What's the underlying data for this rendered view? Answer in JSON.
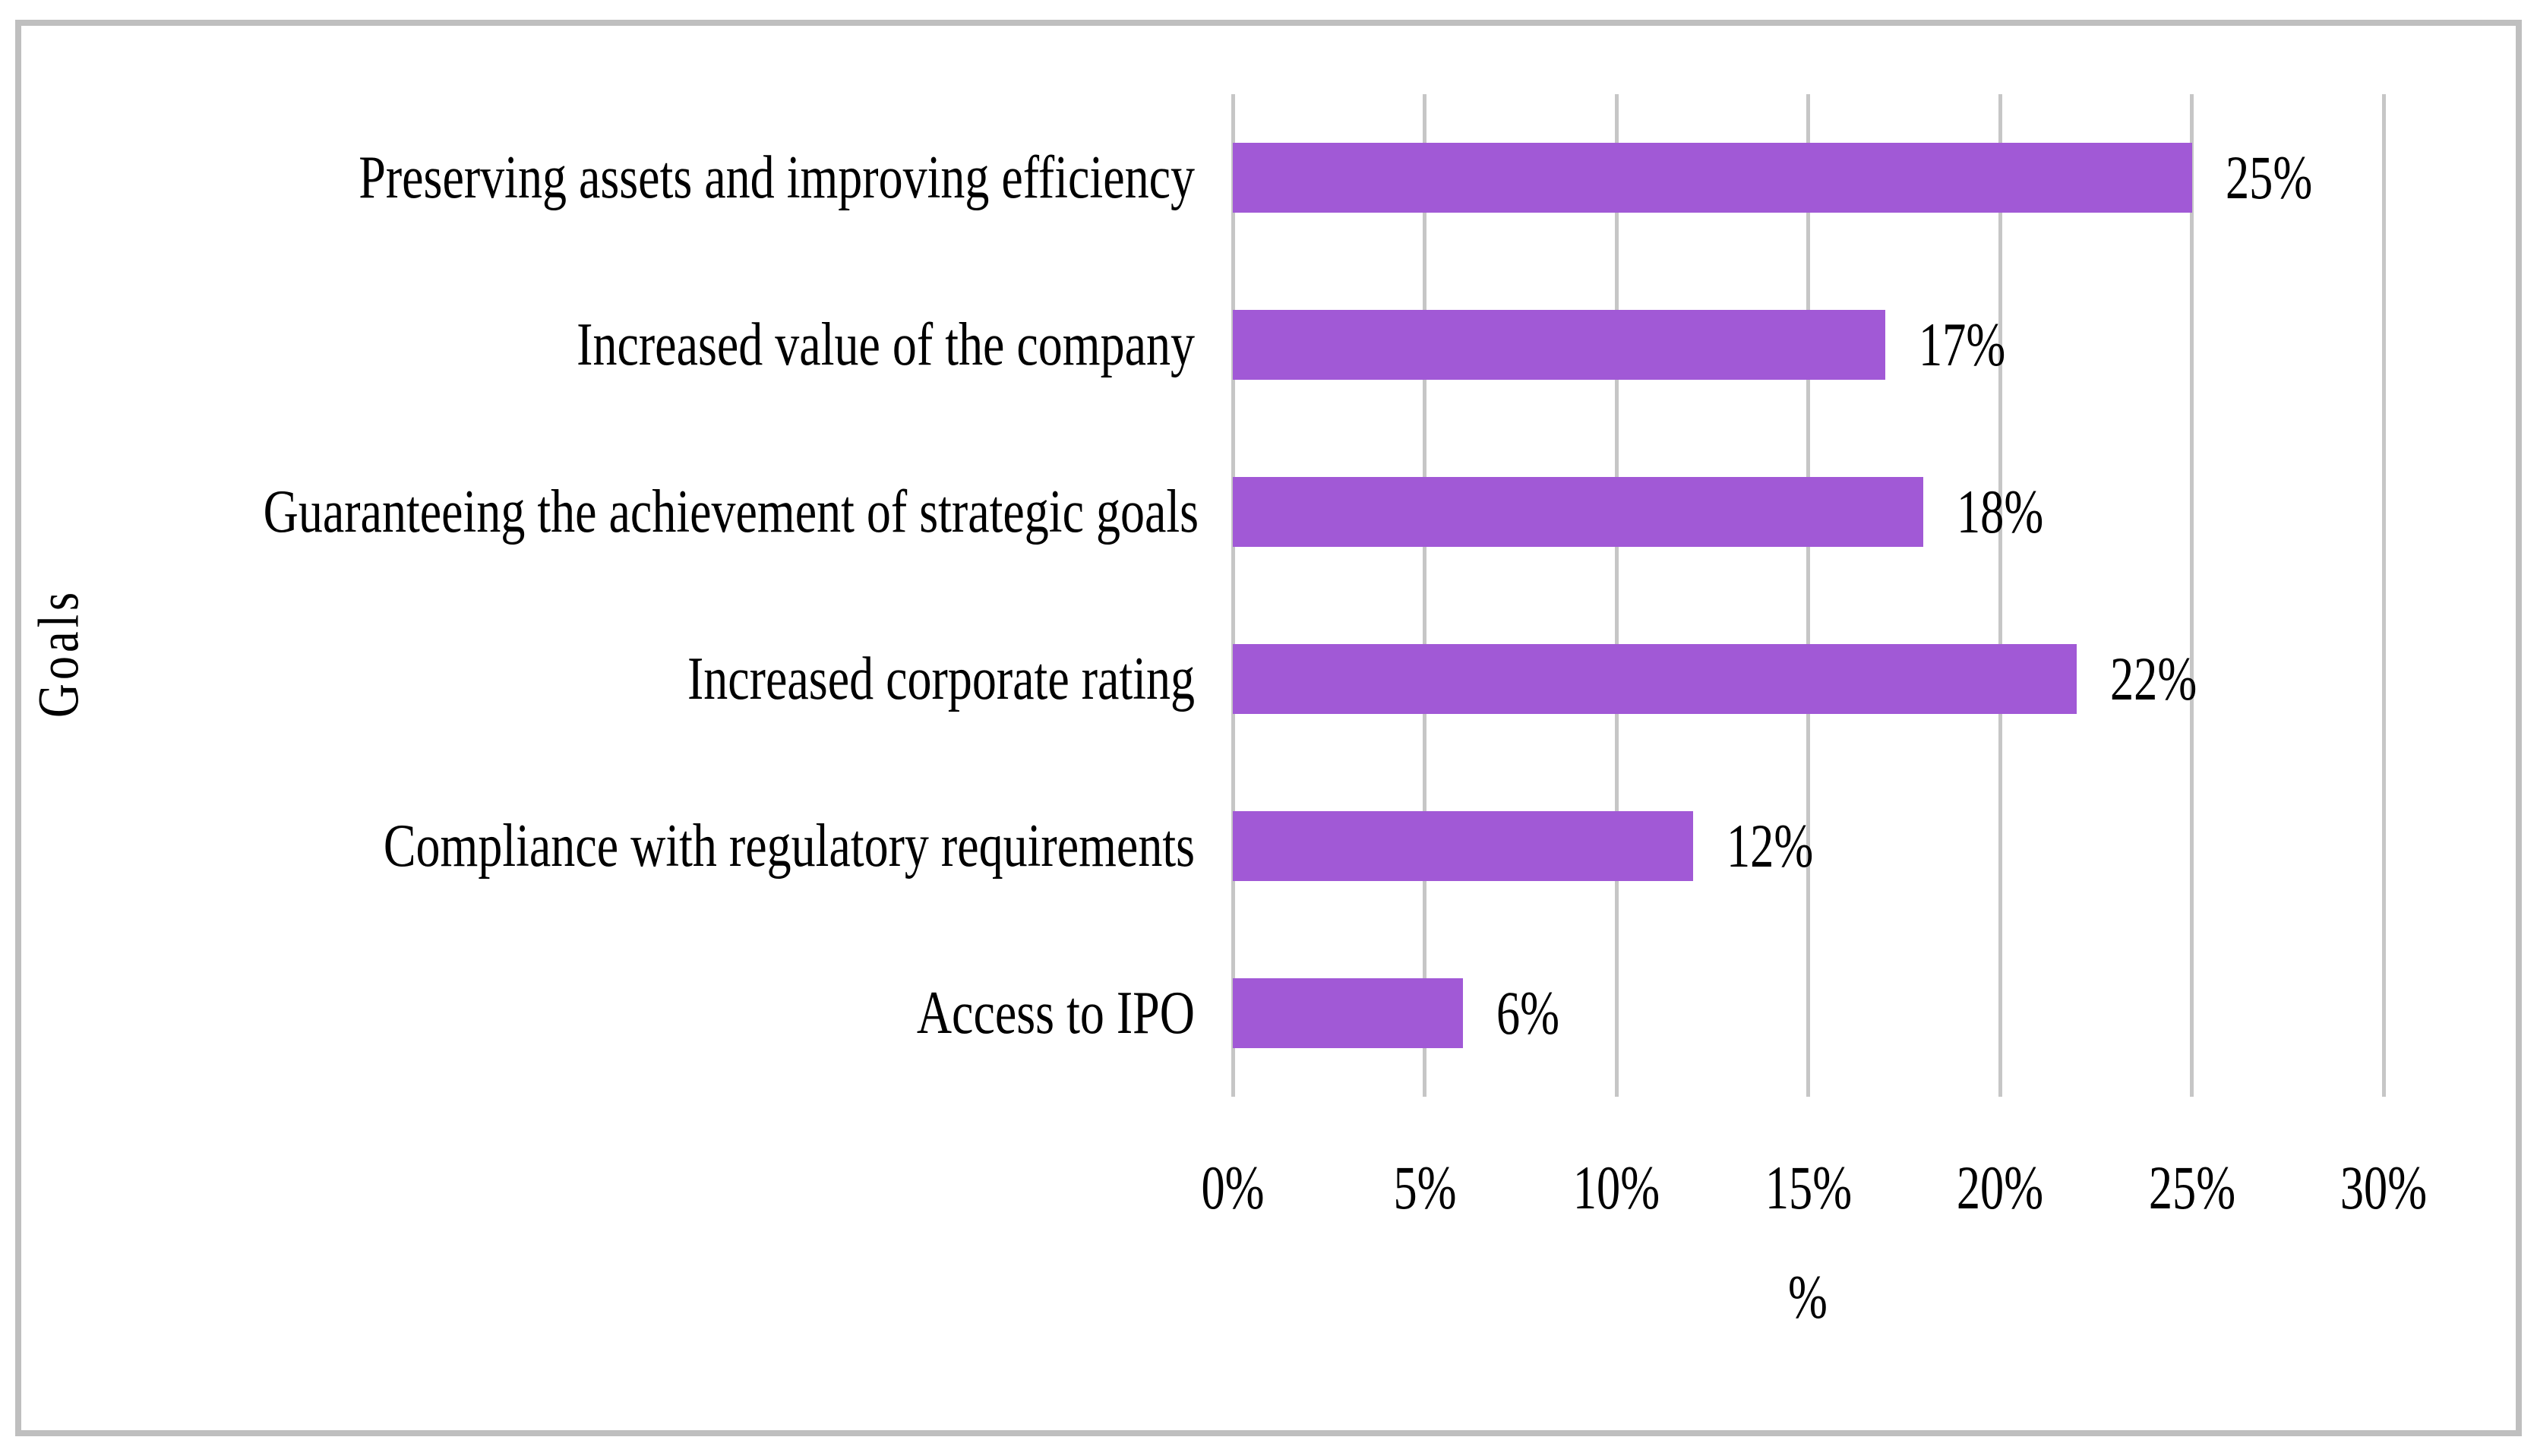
{
  "chart_data": {
    "type": "bar",
    "orientation": "horizontal",
    "title": "",
    "xlabel": "%",
    "ylabel": "Goals",
    "xlim": [
      0,
      30
    ],
    "grid": "vertical",
    "legend": "none",
    "x_ticks": [
      {
        "value": 0,
        "label": "0%"
      },
      {
        "value": 5,
        "label": "5%"
      },
      {
        "value": 10,
        "label": "10%"
      },
      {
        "value": 15,
        "label": "15%"
      },
      {
        "value": 20,
        "label": "20%"
      },
      {
        "value": 25,
        "label": "25%"
      },
      {
        "value": 30,
        "label": "30%"
      }
    ],
    "categories": [
      "Preserving assets and improving efficiency",
      "Increased value of the company",
      "Guaranteeing the achievement of strategic goals",
      "Increased corporate rating",
      "Compliance with regulatory requirements",
      "Access to IPO"
    ],
    "values": [
      25,
      17,
      18,
      22,
      12,
      6
    ],
    "value_labels": [
      "25%",
      "17%",
      "18%",
      "22%",
      "12%",
      "6%"
    ],
    "colors": {
      "bar": "#A159D6",
      "gridline": "#C6C6C6",
      "frame_border": "#BFBFBF",
      "text": "#000000"
    }
  }
}
